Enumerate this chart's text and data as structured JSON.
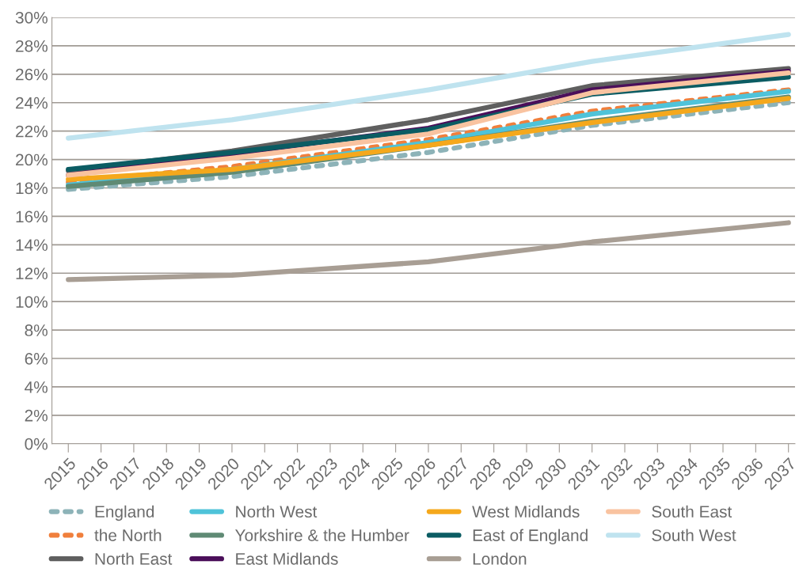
{
  "chart_data": {
    "type": "line",
    "xlim": [
      2014.5,
      2037.2
    ],
    "xticks": [
      2015,
      2016,
      2017,
      2018,
      2019,
      2020,
      2021,
      2022,
      2023,
      2024,
      2025,
      2026,
      2027,
      2028,
      2029,
      2030,
      2031,
      2032,
      2033,
      2034,
      2035,
      2036,
      2037
    ],
    "ylim": [
      0,
      30
    ],
    "yticks": [
      {
        "value": 0,
        "label": "0%"
      },
      {
        "value": 2,
        "label": "2%"
      },
      {
        "value": 4,
        "label": "4%"
      },
      {
        "value": 6,
        "label": "6%"
      },
      {
        "value": 8,
        "label": "8%"
      },
      {
        "value": 10,
        "label": "10%"
      },
      {
        "value": 12,
        "label": "12%"
      },
      {
        "value": 14,
        "label": "14%"
      },
      {
        "value": 16,
        "label": "16%"
      },
      {
        "value": 18,
        "label": "18%"
      },
      {
        "value": 20,
        "label": "20%"
      },
      {
        "value": 22,
        "label": "22%"
      },
      {
        "value": 24,
        "label": "24%"
      },
      {
        "value": 26,
        "label": "26%"
      },
      {
        "value": 28,
        "label": "28%"
      },
      {
        "value": 30,
        "label": "30%"
      }
    ],
    "grid": "y",
    "legend": "bottom",
    "x": [
      2015,
      2020,
      2026,
      2031,
      2037
    ],
    "series": [
      {
        "name": "England",
        "color": "#8db3b8",
        "line_style": "dashed",
        "values": [
          17.9,
          18.8,
          20.5,
          22.4,
          24.0
        ]
      },
      {
        "name": "the North",
        "color": "#f07f3c",
        "line_style": "dashed",
        "values": [
          18.4,
          19.5,
          21.4,
          23.4,
          24.9
        ]
      },
      {
        "name": "North East",
        "color": "#5f5f5f",
        "values": [
          19.2,
          20.6,
          22.8,
          25.2,
          26.4
        ]
      },
      {
        "name": "North West",
        "color": "#4fc3d9",
        "values": [
          18.2,
          19.3,
          21.2,
          23.2,
          24.8
        ]
      },
      {
        "name": "Yorkshire & the Humber",
        "color": "#5f8a74",
        "values": [
          18.1,
          19.1,
          21.0,
          22.7,
          24.4
        ]
      },
      {
        "name": "East Midlands",
        "color": "#4b0f5a",
        "values": [
          18.9,
          20.4,
          22.2,
          24.9,
          26.2
        ]
      },
      {
        "name": "West Midlands",
        "color": "#f5a81c",
        "values": [
          18.6,
          19.3,
          21.0,
          22.6,
          24.3
        ]
      },
      {
        "name": "East of England",
        "color": "#0b5c63",
        "values": [
          19.3,
          20.5,
          22.1,
          24.6,
          25.8
        ]
      },
      {
        "name": "London",
        "color": "#a89e94",
        "values": [
          11.55,
          11.85,
          12.8,
          14.2,
          15.55
        ]
      },
      {
        "name": "South East",
        "color": "#f9c3a0",
        "values": [
          18.9,
          20.1,
          21.8,
          24.7,
          26.1
        ]
      },
      {
        "name": "South West",
        "color": "#bfe3ef",
        "values": [
          21.5,
          22.8,
          24.9,
          26.9,
          28.8
        ]
      }
    ]
  }
}
